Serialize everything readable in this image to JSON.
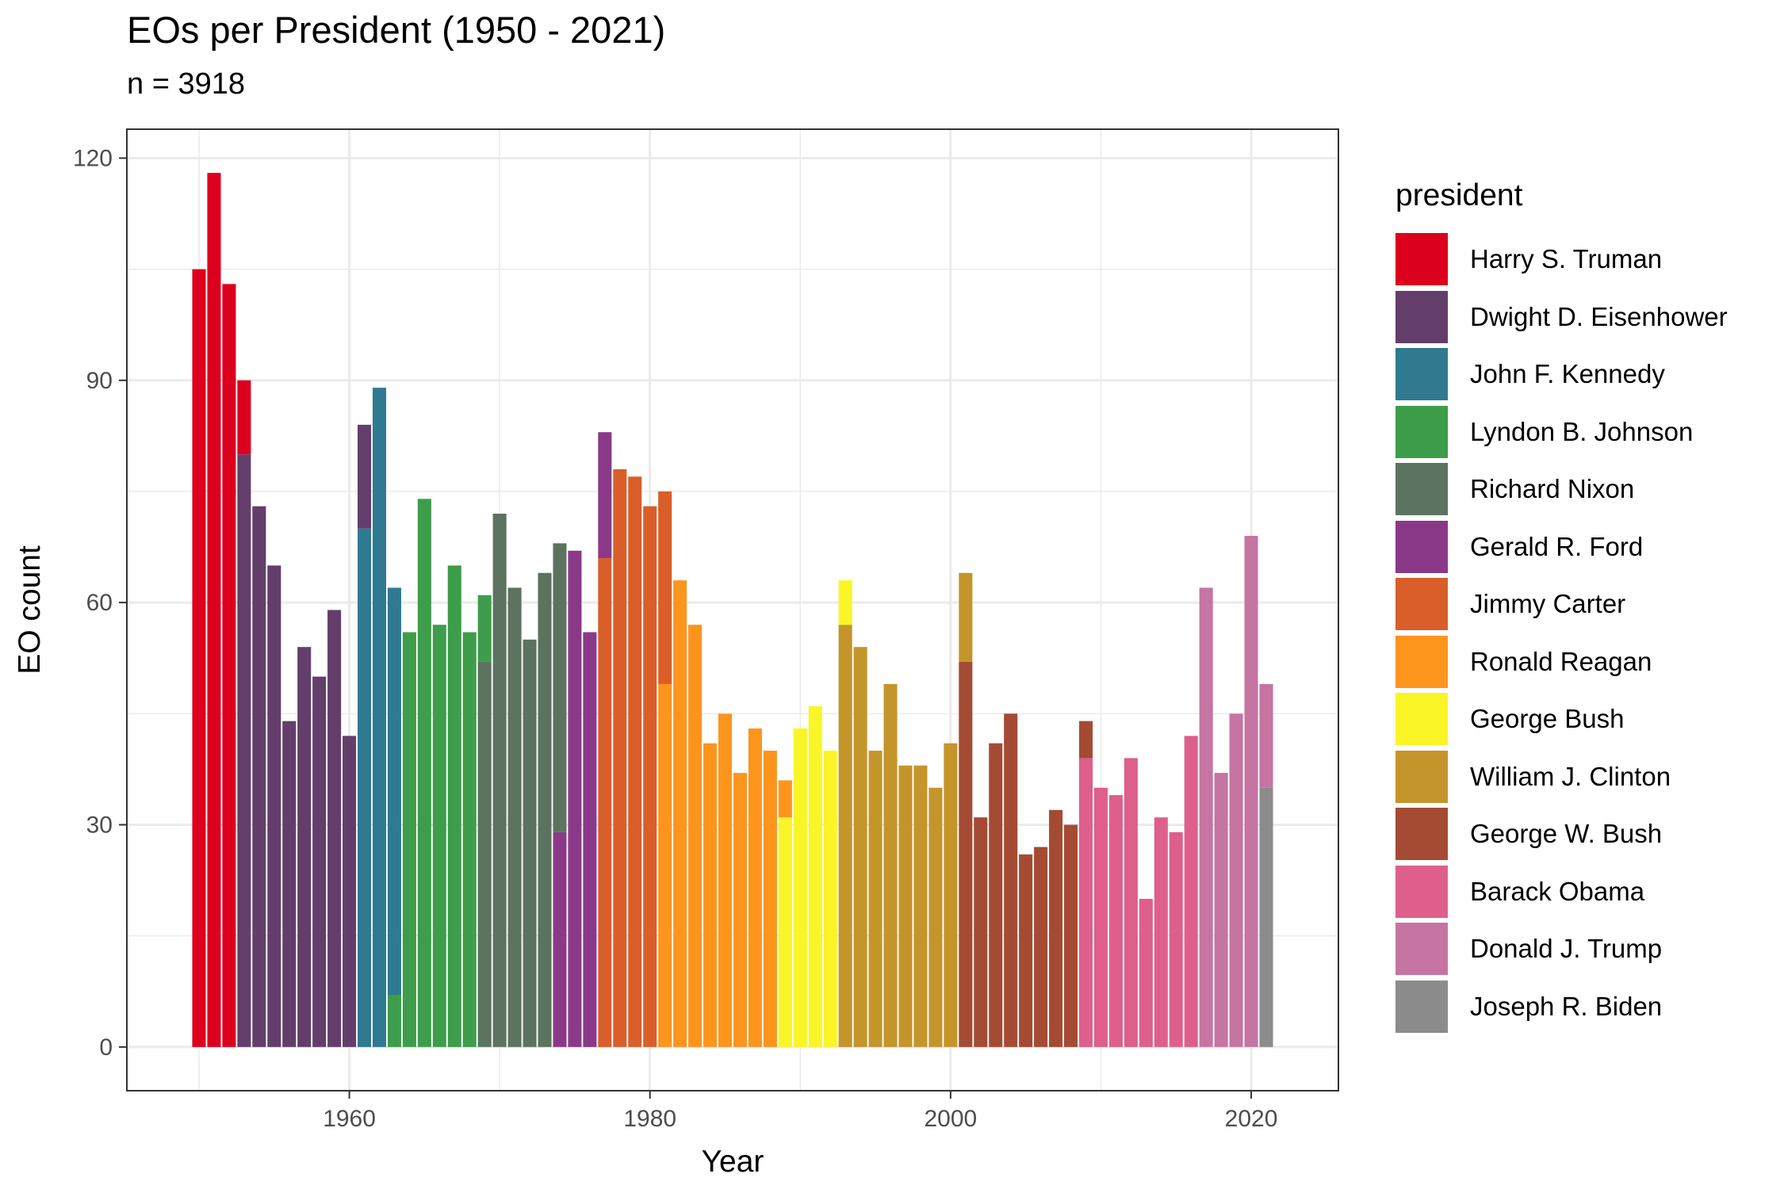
{
  "title": "EOs per President (1950 - 2021)",
  "subtitle": "n = 3918",
  "chart_data": {
    "type": "bar",
    "stacked": true,
    "xlabel": "Year",
    "ylabel": "EO count",
    "xlim": [
      1945.2,
      2025.8
    ],
    "ylim": [
      -5.9,
      123.9
    ],
    "x_ticks": [
      1960,
      1980,
      2000,
      2020
    ],
    "y_ticks": [
      0,
      30,
      60,
      90,
      120
    ],
    "grid": true,
    "legend_title": "president",
    "legend_position": "right",
    "presidents": [
      {
        "name": "Harry S. Truman",
        "color": "#DC001E"
      },
      {
        "name": "Dwight D. Eisenhower",
        "color": "#633E6A"
      },
      {
        "name": "John F. Kennedy",
        "color": "#307A91"
      },
      {
        "name": "Lyndon B. Johnson",
        "color": "#3E9D4A"
      },
      {
        "name": "Richard Nixon",
        "color": "#5C735F"
      },
      {
        "name": "Gerald R. Ford",
        "color": "#8A3988"
      },
      {
        "name": "Jimmy Carter",
        "color": "#D95E2A"
      },
      {
        "name": "Ronald Reagan",
        "color": "#FD951D"
      },
      {
        "name": "George Bush",
        "color": "#FAF526"
      },
      {
        "name": "William J. Clinton",
        "color": "#C4952A"
      },
      {
        "name": "George W. Bush",
        "color": "#A54A33"
      },
      {
        "name": "Barack Obama",
        "color": "#DE5F8C"
      },
      {
        "name": "Donald J. Trump",
        "color": "#C674A2"
      },
      {
        "name": "Joseph R. Biden",
        "color": "#8B8B8B"
      }
    ],
    "bars": [
      {
        "x": 1950,
        "segments": [
          {
            "p": 0,
            "v": 105
          }
        ]
      },
      {
        "x": 1951,
        "segments": [
          {
            "p": 0,
            "v": 118
          }
        ]
      },
      {
        "x": 1952,
        "segments": [
          {
            "p": 0,
            "v": 103
          }
        ]
      },
      {
        "x": 1953,
        "segments": [
          {
            "p": 1,
            "v": 80
          },
          {
            "p": 0,
            "v": 10
          }
        ]
      },
      {
        "x": 1954,
        "segments": [
          {
            "p": 1,
            "v": 73
          }
        ]
      },
      {
        "x": 1955,
        "segments": [
          {
            "p": 1,
            "v": 65
          }
        ]
      },
      {
        "x": 1956,
        "segments": [
          {
            "p": 1,
            "v": 44
          }
        ]
      },
      {
        "x": 1957,
        "segments": [
          {
            "p": 1,
            "v": 54
          }
        ]
      },
      {
        "x": 1958,
        "segments": [
          {
            "p": 1,
            "v": 50
          }
        ]
      },
      {
        "x": 1959,
        "segments": [
          {
            "p": 1,
            "v": 59
          }
        ]
      },
      {
        "x": 1960,
        "segments": [
          {
            "p": 1,
            "v": 42
          }
        ]
      },
      {
        "x": 1961,
        "segments": [
          {
            "p": 2,
            "v": 70
          },
          {
            "p": 1,
            "v": 14
          }
        ]
      },
      {
        "x": 1962,
        "segments": [
          {
            "p": 2,
            "v": 89
          }
        ]
      },
      {
        "x": 1963,
        "segments": [
          {
            "p": 3,
            "v": 7
          },
          {
            "p": 2,
            "v": 55
          }
        ]
      },
      {
        "x": 1964,
        "segments": [
          {
            "p": 3,
            "v": 56
          }
        ]
      },
      {
        "x": 1965,
        "segments": [
          {
            "p": 3,
            "v": 74
          }
        ]
      },
      {
        "x": 1966,
        "segments": [
          {
            "p": 3,
            "v": 57
          }
        ]
      },
      {
        "x": 1967,
        "segments": [
          {
            "p": 3,
            "v": 65
          }
        ]
      },
      {
        "x": 1968,
        "segments": [
          {
            "p": 3,
            "v": 56
          }
        ]
      },
      {
        "x": 1969,
        "segments": [
          {
            "p": 4,
            "v": 52
          },
          {
            "p": 3,
            "v": 9
          }
        ]
      },
      {
        "x": 1970,
        "segments": [
          {
            "p": 4,
            "v": 72
          }
        ]
      },
      {
        "x": 1971,
        "segments": [
          {
            "p": 4,
            "v": 62
          }
        ]
      },
      {
        "x": 1972,
        "segments": [
          {
            "p": 4,
            "v": 55
          }
        ]
      },
      {
        "x": 1973,
        "segments": [
          {
            "p": 4,
            "v": 64
          }
        ]
      },
      {
        "x": 1974,
        "segments": [
          {
            "p": 5,
            "v": 29
          },
          {
            "p": 4,
            "v": 39
          }
        ]
      },
      {
        "x": 1975,
        "segments": [
          {
            "p": 5,
            "v": 67
          }
        ]
      },
      {
        "x": 1976,
        "segments": [
          {
            "p": 5,
            "v": 56
          }
        ]
      },
      {
        "x": 1977,
        "segments": [
          {
            "p": 6,
            "v": 66
          },
          {
            "p": 5,
            "v": 17
          }
        ]
      },
      {
        "x": 1978,
        "segments": [
          {
            "p": 6,
            "v": 78
          }
        ]
      },
      {
        "x": 1979,
        "segments": [
          {
            "p": 6,
            "v": 77
          }
        ]
      },
      {
        "x": 1980,
        "segments": [
          {
            "p": 6,
            "v": 73
          }
        ]
      },
      {
        "x": 1981,
        "segments": [
          {
            "p": 7,
            "v": 49
          },
          {
            "p": 6,
            "v": 26
          }
        ]
      },
      {
        "x": 1982,
        "segments": [
          {
            "p": 7,
            "v": 63
          }
        ]
      },
      {
        "x": 1983,
        "segments": [
          {
            "p": 7,
            "v": 57
          }
        ]
      },
      {
        "x": 1984,
        "segments": [
          {
            "p": 7,
            "v": 41
          }
        ]
      },
      {
        "x": 1985,
        "segments": [
          {
            "p": 7,
            "v": 45
          }
        ]
      },
      {
        "x": 1986,
        "segments": [
          {
            "p": 7,
            "v": 37
          }
        ]
      },
      {
        "x": 1987,
        "segments": [
          {
            "p": 7,
            "v": 43
          }
        ]
      },
      {
        "x": 1988,
        "segments": [
          {
            "p": 7,
            "v": 40
          }
        ]
      },
      {
        "x": 1989,
        "segments": [
          {
            "p": 8,
            "v": 31
          },
          {
            "p": 7,
            "v": 5
          }
        ]
      },
      {
        "x": 1990,
        "segments": [
          {
            "p": 8,
            "v": 43
          }
        ]
      },
      {
        "x": 1991,
        "segments": [
          {
            "p": 8,
            "v": 46
          }
        ]
      },
      {
        "x": 1992,
        "segments": [
          {
            "p": 8,
            "v": 40
          }
        ]
      },
      {
        "x": 1993,
        "segments": [
          {
            "p": 9,
            "v": 57
          },
          {
            "p": 8,
            "v": 6
          }
        ]
      },
      {
        "x": 1994,
        "segments": [
          {
            "p": 9,
            "v": 54
          }
        ]
      },
      {
        "x": 1995,
        "segments": [
          {
            "p": 9,
            "v": 40
          }
        ]
      },
      {
        "x": 1996,
        "segments": [
          {
            "p": 9,
            "v": 49
          }
        ]
      },
      {
        "x": 1997,
        "segments": [
          {
            "p": 9,
            "v": 38
          }
        ]
      },
      {
        "x": 1998,
        "segments": [
          {
            "p": 9,
            "v": 38
          }
        ]
      },
      {
        "x": 1999,
        "segments": [
          {
            "p": 9,
            "v": 35
          }
        ]
      },
      {
        "x": 2000,
        "segments": [
          {
            "p": 9,
            "v": 41
          }
        ]
      },
      {
        "x": 2001,
        "segments": [
          {
            "p": 10,
            "v": 52
          },
          {
            "p": 9,
            "v": 12
          }
        ]
      },
      {
        "x": 2002,
        "segments": [
          {
            "p": 10,
            "v": 31
          }
        ]
      },
      {
        "x": 2003,
        "segments": [
          {
            "p": 10,
            "v": 41
          }
        ]
      },
      {
        "x": 2004,
        "segments": [
          {
            "p": 10,
            "v": 45
          }
        ]
      },
      {
        "x": 2005,
        "segments": [
          {
            "p": 10,
            "v": 26
          }
        ]
      },
      {
        "x": 2006,
        "segments": [
          {
            "p": 10,
            "v": 27
          }
        ]
      },
      {
        "x": 2007,
        "segments": [
          {
            "p": 10,
            "v": 32
          }
        ]
      },
      {
        "x": 2008,
        "segments": [
          {
            "p": 10,
            "v": 30
          }
        ]
      },
      {
        "x": 2009,
        "segments": [
          {
            "p": 11,
            "v": 39
          },
          {
            "p": 10,
            "v": 5
          }
        ]
      },
      {
        "x": 2010,
        "segments": [
          {
            "p": 11,
            "v": 35
          }
        ]
      },
      {
        "x": 2011,
        "segments": [
          {
            "p": 11,
            "v": 34
          }
        ]
      },
      {
        "x": 2012,
        "segments": [
          {
            "p": 11,
            "v": 39
          }
        ]
      },
      {
        "x": 2013,
        "segments": [
          {
            "p": 11,
            "v": 20
          }
        ]
      },
      {
        "x": 2014,
        "segments": [
          {
            "p": 11,
            "v": 31
          }
        ]
      },
      {
        "x": 2015,
        "segments": [
          {
            "p": 11,
            "v": 29
          }
        ]
      },
      {
        "x": 2016,
        "segments": [
          {
            "p": 11,
            "v": 42
          }
        ]
      },
      {
        "x": 2017,
        "segments": [
          {
            "p": 12,
            "v": 62
          }
        ]
      },
      {
        "x": 2018,
        "segments": [
          {
            "p": 12,
            "v": 37
          }
        ]
      },
      {
        "x": 2019,
        "segments": [
          {
            "p": 12,
            "v": 45
          }
        ]
      },
      {
        "x": 2020,
        "segments": [
          {
            "p": 12,
            "v": 69
          }
        ]
      },
      {
        "x": 2021,
        "segments": [
          {
            "p": 13,
            "v": 35
          },
          {
            "p": 12,
            "v": 14
          }
        ]
      }
    ]
  }
}
